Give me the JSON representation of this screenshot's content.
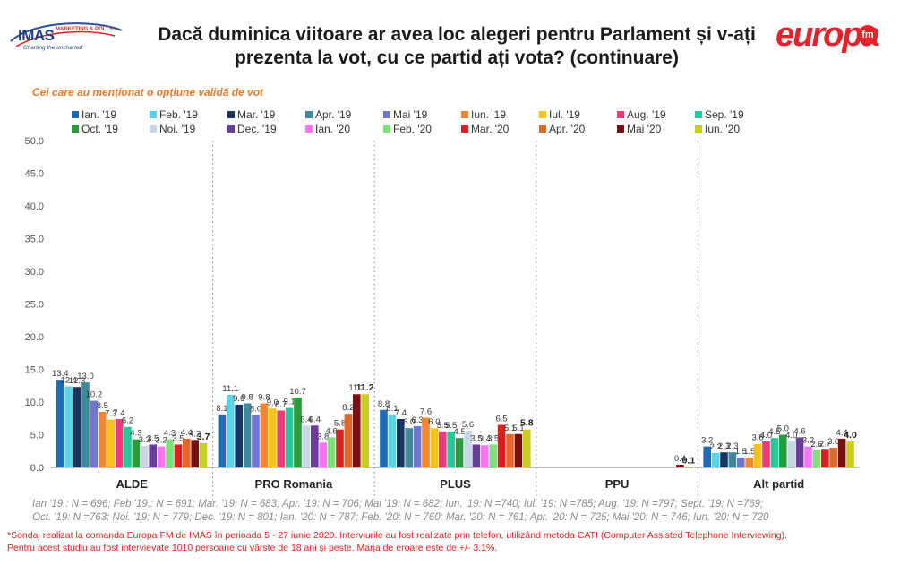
{
  "header": {
    "imas_logo_text": "IMAS",
    "imas_logo_sub": "MARKETING & POLLS",
    "imas_tagline": "Charting the uncharted",
    "europa_logo_text": "europa",
    "europa_logo_fm": "fm"
  },
  "colors": [
    "#1f6bb5",
    "#5bd3e6",
    "#17355f",
    "#3f8a9a",
    "#7177cf",
    "#ee8833",
    "#f5c21b",
    "#ea3d79",
    "#27c79a",
    "#2b9a3a",
    "#c7d7e4",
    "#6a3d9a",
    "#fb74f0",
    "#7ce07a",
    "#d91f1f",
    "#e06a2a",
    "#7a0f0f",
    "#c9cf20"
  ],
  "chart_data": {
    "type": "bar",
    "title": "Dacă duminica viitoare ar avea loc alegeri pentru Parlament și v-ați prezenta la vot, cu ce partid ați vota? (continuare)",
    "subtitle": "Cei care au menționat o opțiune validă de vot",
    "categories": [
      "ALDE",
      "PRO Romania",
      "PLUS",
      "PPU",
      "Alt partid"
    ],
    "ylim": [
      0,
      50
    ],
    "yticks": [
      "0.0",
      "5.0",
      "10.0",
      "15.0",
      "20.0",
      "25.0",
      "30.0",
      "35.0",
      "40.0",
      "45.0",
      "50.0"
    ],
    "grid": false,
    "legend_position": "top",
    "series": [
      {
        "name": "Ian. '19",
        "values": [
          13.4,
          8.1,
          8.8,
          null,
          3.2
        ]
      },
      {
        "name": "Feb. '19",
        "values": [
          12.4,
          11.1,
          8.1,
          null,
          2.2
        ]
      },
      {
        "name": "Mar. '19",
        "values": [
          12.3,
          9.6,
          7.4,
          null,
          2.3
        ]
      },
      {
        "name": "Apr. '19",
        "values": [
          13.0,
          9.8,
          6.0,
          null,
          2.3
        ]
      },
      {
        "name": "Mai '19",
        "values": [
          10.2,
          8.0,
          6.3,
          null,
          1.5
        ]
      },
      {
        "name": "Iun. '19",
        "values": [
          8.5,
          9.8,
          7.6,
          null,
          1.5
        ]
      },
      {
        "name": "Iul. '19",
        "values": [
          7.3,
          9.0,
          6.0,
          null,
          3.6
        ]
      },
      {
        "name": "Aug. '19",
        "values": [
          7.4,
          8.7,
          5.5,
          null,
          4.0
        ]
      },
      {
        "name": "Sep. '19",
        "values": [
          6.2,
          9.1,
          5.5,
          null,
          4.5
        ]
      },
      {
        "name": "Oct. '19",
        "values": [
          4.3,
          10.7,
          4.5,
          null,
          5.0
        ]
      },
      {
        "name": "Noi. '19",
        "values": [
          3.3,
          6.4,
          5.6,
          null,
          4.0
        ]
      },
      {
        "name": "Dec. '19",
        "values": [
          3.5,
          6.4,
          3.5,
          null,
          4.6
        ]
      },
      {
        "name": "Ian. '20",
        "values": [
          3.2,
          3.8,
          3.4,
          null,
          3.2
        ]
      },
      {
        "name": "Feb. '20",
        "values": [
          4.3,
          4.6,
          3.5,
          null,
          2.6
        ]
      },
      {
        "name": "Mar. '20",
        "values": [
          3.5,
          5.8,
          6.5,
          null,
          2.7
        ]
      },
      {
        "name": "Apr. '20",
        "values": [
          4.4,
          8.2,
          5.1,
          null,
          3.0
        ]
      },
      {
        "name": "Mai '20",
        "values": [
          4.2,
          11.2,
          5.1,
          0.4,
          4.4
        ]
      },
      {
        "name": "Iun. '20",
        "values": [
          3.7,
          11.2,
          5.8,
          0.1,
          4.0
        ]
      }
    ],
    "label_texts": [
      [
        "13.4",
        "12.4",
        "12.3",
        "13.0",
        "10.2",
        "8.5",
        "7.3",
        "7.4",
        "6.2",
        "4.3",
        "3.3",
        "3.5",
        "3.2",
        "4.3",
        "3.5",
        "4.4",
        "4.2",
        "3.7"
      ],
      [
        "8.1",
        "11.1",
        "9.6",
        "9.8",
        "8.0",
        "9.8",
        "9.0",
        "8.7",
        "9.1",
        "10.7",
        "6.4",
        "6.4",
        "3.8",
        "4.6",
        "5.8",
        "8.2",
        "11.2",
        "11.2"
      ],
      [
        "8.8",
        "8.1",
        "7.4",
        "6.0",
        "6.3",
        "7.6",
        "6.0",
        "5.5",
        "5.5",
        "4.5",
        "5.6",
        "3.5",
        "3.4",
        "3.5",
        "6.5",
        "5.1",
        "5.1",
        "5.8"
      ],
      [
        null,
        null,
        null,
        null,
        null,
        null,
        null,
        null,
        null,
        null,
        null,
        null,
        null,
        null,
        null,
        null,
        "0.4",
        "0.1"
      ],
      [
        "3.2",
        "2.2",
        "2.3",
        "2.3",
        "1.5",
        "1.5",
        "3.6",
        "4.0",
        "4.5",
        "5.0",
        "4.0",
        "4.6",
        "3.2",
        "2.6",
        "2.7",
        "3.0",
        "4.4",
        "4.0"
      ]
    ]
  },
  "notes": {
    "line1": "Ian '19.: N = 696; Feb '19.: N = 691; Mar. '19: N = 683; Apr. '19: N = 706; Mai '19: N = 682; Iun. '19: N =740; Iul. '19: N =785; Aug. '19: N =797; Sept. '19: N =769;",
    "line2": "Oct. '19: N =763; Noi. '19: N = 779; Dec. '19: N = 801; Ian. '20: N = 787; Feb. '20: N = 760; Mar. '20: N = 761; Apr. '20: N = 725; Mai '20: N = 746; Iun. '20: N = 720"
  },
  "footnote": {
    "line1": "*Sondaj realizat la comanda Europa FM de IMAS în perioada  5 - 27 iunie 2020. Interviurile au fost realizate prin telefon, utilizând metoda CATI (Computer Assisted Telephone Interviewing).",
    "line2": "Pentru acest studiu au fost intervievate 1010 persoane cu vârste de 18 ani și peste. Marja de eroare este de +/- 3.1%."
  }
}
